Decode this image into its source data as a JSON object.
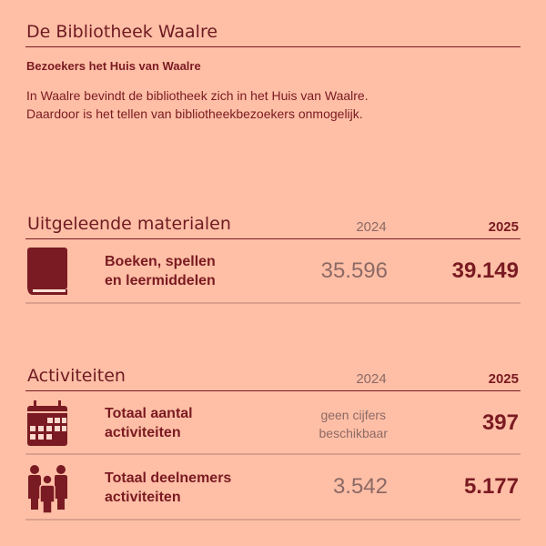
{
  "title": "De Bibliotheek Waalre",
  "visitors": {
    "heading": "Bezoekers het Huis van Waalre",
    "text_line1": "In Waalre bevindt de bibliotheek zich in het Huis van Waalre.",
    "text_line2": "Daardoor is het tellen van bibliotheekbezoekers onmogelijk."
  },
  "materials": {
    "heading": "Uitgeleende materialen",
    "year_prev": "2024",
    "year_curr": "2025",
    "rows": [
      {
        "icon": "book-icon",
        "label_line1": "Boeken, spellen",
        "label_line2": "en leermiddelen",
        "prev": "35.596",
        "curr": "39.149"
      }
    ]
  },
  "activities": {
    "heading": "Activiteiten",
    "year_prev": "2024",
    "year_curr": "2025",
    "rows": [
      {
        "icon": "calendar-icon",
        "label_line1": "Totaal aantal",
        "label_line2": "activiteiten",
        "prev_line1": "geen cijfers",
        "prev_line2": "beschikbaar",
        "curr": "397"
      },
      {
        "icon": "people-icon",
        "label_line1": "Totaal deelnemers",
        "label_line2": "activiteiten",
        "prev": "3.542",
        "curr": "5.177"
      }
    ]
  },
  "colors": {
    "background": "#ffbfa6",
    "accent": "#7a1a22",
    "muted": "#8c6a66"
  }
}
